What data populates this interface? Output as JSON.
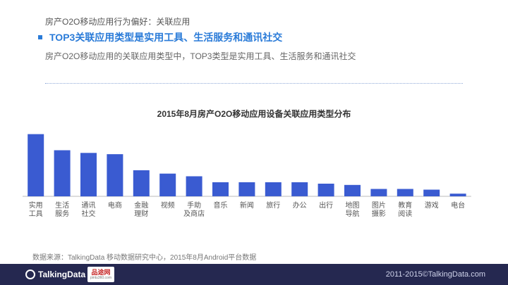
{
  "header": {
    "breadcrumb": "房产O2O移动应用行为偏好：关联应用",
    "headline": "TOP3关联应用类型是实用工具、生活服务和通讯社交",
    "subtitle": "房产O2O移动应用的关联应用类型中，TOP3类型是实用工具、生活服务和通讯社交"
  },
  "chart_data": {
    "type": "bar",
    "title": "2015年8月房产O2O移动应用设备关联应用类型分布",
    "categories": [
      [
        "实用",
        "工具"
      ],
      [
        "生活",
        "服务"
      ],
      [
        "通讯",
        "社交"
      ],
      [
        "电商"
      ],
      [
        "金融",
        "理财"
      ],
      [
        "视频"
      ],
      [
        "手助",
        "及商店"
      ],
      [
        "音乐"
      ],
      [
        "新闻"
      ],
      [
        "旅行"
      ],
      [
        "办公"
      ],
      [
        "出行"
      ],
      [
        "地图",
        "导航"
      ],
      [
        "图片",
        "摄影"
      ],
      [
        "教育",
        "阅读"
      ],
      [
        "游戏"
      ],
      [
        "电台"
      ]
    ],
    "values": [
      93,
      69,
      65,
      63,
      39,
      34,
      30,
      21,
      21,
      21,
      21,
      19,
      17,
      11,
      11,
      10,
      4
    ],
    "ylim": [
      0,
      100
    ],
    "grid": false,
    "legend": "none",
    "bar_color": "#3a5bd1",
    "axis_color": "#bbbbbb"
  },
  "source": "数据来源：TalkingData 移动数据研究中心，2015年8月Android平台数据",
  "footer": {
    "logo_text": "TalkingData",
    "partner_name": "品途网",
    "partner_url": "pintu360.com",
    "copyright": "2011-2015©TalkingData.com",
    "bg_color": "#252850"
  }
}
